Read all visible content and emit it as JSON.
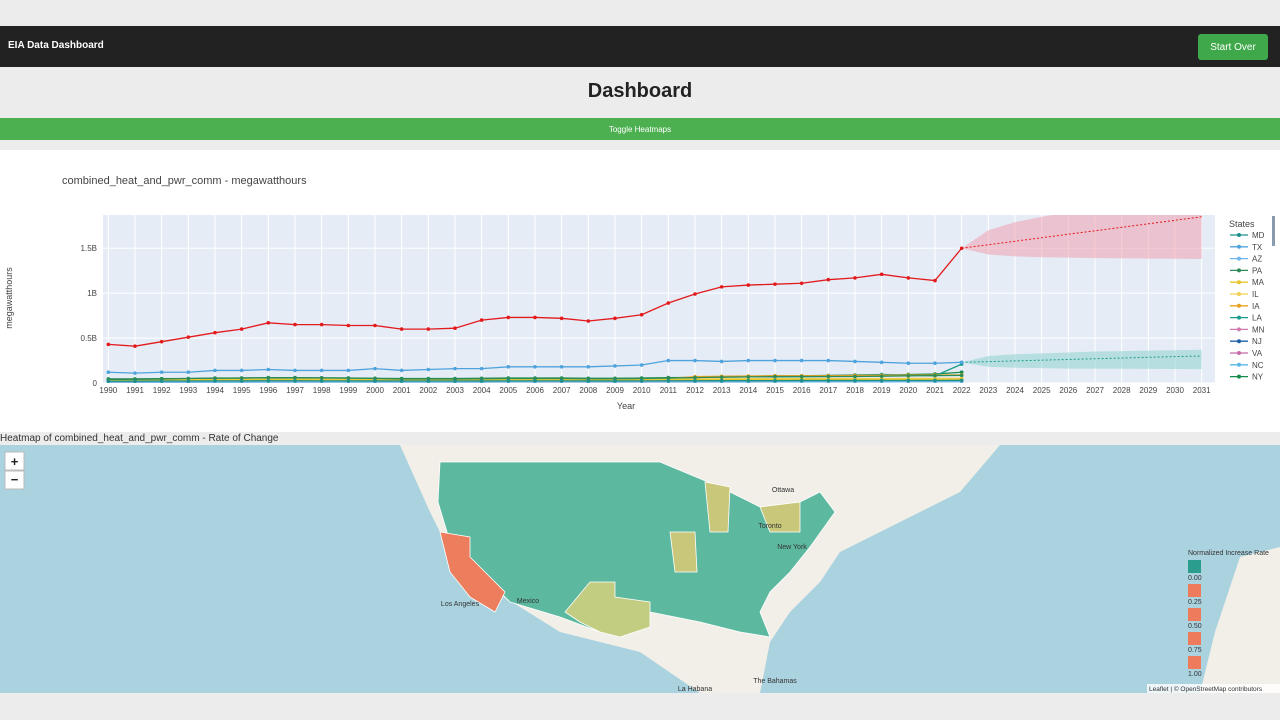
{
  "navbar": {
    "brand": "EIA Data Dashboard",
    "button": "Start Over"
  },
  "page_title": "Dashboard",
  "toggle_button": "Toggle Heatmaps",
  "chart_data": {
    "type": "line",
    "title": "combined_heat_and_pwr_comm - megawatthours",
    "x_label": "Year",
    "y_label": "megawatthours",
    "legend_title": "States",
    "grid": true,
    "xlim": [
      1989.8,
      2031.5
    ],
    "ylim": [
      0,
      1870000000
    ],
    "xticks": [
      1990,
      1991,
      1992,
      1993,
      1994,
      1995,
      1996,
      1997,
      1998,
      1999,
      2000,
      2001,
      2002,
      2003,
      2004,
      2005,
      2006,
      2007,
      2008,
      2009,
      2010,
      2011,
      2012,
      2013,
      2014,
      2015,
      2016,
      2017,
      2018,
      2019,
      2020,
      2021,
      2022,
      2023,
      2024,
      2025,
      2026,
      2027,
      2028,
      2029,
      2030,
      2031
    ],
    "yticks": [
      0,
      {
        "value": 500000000,
        "label": "0.5B"
      },
      {
        "value": 1000000000,
        "label": "1B"
      },
      {
        "value": 1500000000,
        "label": "1.5B"
      }
    ],
    "x": [
      1990,
      1991,
      1992,
      1993,
      1994,
      1995,
      1996,
      1997,
      1998,
      1999,
      2000,
      2001,
      2002,
      2003,
      2004,
      2005,
      2006,
      2007,
      2008,
      2009,
      2010,
      2011,
      2012,
      2013,
      2014,
      2015,
      2016,
      2017,
      2018,
      2019,
      2020,
      2021,
      2022
    ],
    "series": [
      {
        "color": "#e31a1c",
        "values": [
          430000000.0,
          410000000.0,
          460000000.0,
          510000000.0,
          560000000.0,
          600000000.0,
          670000000.0,
          650000000.0,
          650000000.0,
          640000000.0,
          640000000.0,
          600000000.0,
          600000000.0,
          610000000.0,
          700000000.0,
          730000000.0,
          730000000.0,
          720000000.0,
          690000000.0,
          720000000.0,
          760000000.0,
          890000000.0,
          990000000.0,
          1070000000.0,
          1090000000.0,
          1100000000.0,
          1110000000.0,
          1150000000.0,
          1170000000.0,
          1210000000.0,
          1170000000.0,
          1140000000.0,
          1500000000.0
        ]
      },
      {
        "name": "MD",
        "color": "#1f8f8a",
        "values": [
          20000000.0,
          20000000.0,
          22000000.0,
          22000000.0,
          24000000.0,
          24000000.0,
          25000000.0,
          25000000.0,
          24000000.0,
          24000000.0,
          23000000.0,
          22000000.0,
          22000000.0,
          22000000.0,
          23000000.0,
          24000000.0,
          24000000.0,
          24000000.0,
          23000000.0,
          23000000.0,
          24000000.0,
          25000000.0,
          25000000.0,
          26000000.0,
          26000000.0,
          26000000.0,
          27000000.0,
          27000000.0,
          27000000.0,
          28000000.0,
          28000000.0,
          28000000.0,
          29000000.0
        ]
      },
      {
        "name": "TX",
        "color": "#4fa3dd",
        "values": [
          120000000.0,
          110000000.0,
          120000000.0,
          120000000.0,
          140000000.0,
          140000000.0,
          150000000.0,
          140000000.0,
          140000000.0,
          140000000.0,
          160000000.0,
          140000000.0,
          150000000.0,
          160000000.0,
          160000000.0,
          180000000.0,
          180000000.0,
          180000000.0,
          180000000.0,
          190000000.0,
          200000000.0,
          250000000.0,
          250000000.0,
          240000000.0,
          250000000.0,
          250000000.0,
          250000000.0,
          250000000.0,
          240000000.0,
          230000000.0,
          220000000.0,
          220000000.0,
          230000000.0
        ]
      },
      {
        "name": "AZ",
        "color": "#6fb7e8",
        "values": [
          10000000.0,
          10000000.0,
          10000000.0,
          11000000.0,
          11000000.0,
          12000000.0,
          12000000.0,
          12000000.0,
          12000000.0,
          12000000.0,
          13000000.0,
          13000000.0,
          13000000.0,
          13000000.0,
          14000000.0,
          14000000.0,
          14000000.0,
          15000000.0,
          15000000.0,
          15000000.0,
          15000000.0,
          16000000.0,
          16000000.0,
          16000000.0,
          16000000.0,
          17000000.0,
          17000000.0,
          17000000.0,
          17000000.0,
          18000000.0,
          18000000.0,
          18000000.0,
          18000000.0
        ]
      },
      {
        "name": "PA",
        "color": "#2e8b57",
        "values": [
          40000000.0,
          40000000.0,
          45000000.0,
          50000000.0,
          55000000.0,
          55000000.0,
          60000000.0,
          60000000.0,
          58000000.0,
          55000000.0,
          50000000.0,
          45000000.0,
          45000000.0,
          45000000.0,
          48000000.0,
          50000000.0,
          50000000.0,
          50000000.0,
          48000000.0,
          48000000.0,
          50000000.0,
          55000000.0,
          60000000.0,
          65000000.0,
          68000000.0,
          70000000.0,
          70000000.0,
          72000000.0,
          72000000.0,
          75000000.0,
          80000000.0,
          82000000.0,
          85000000.0
        ]
      },
      {
        "name": "MA",
        "color": "#e5c72b",
        "values": [
          30000000.0,
          30000000.0,
          32000000.0,
          32000000.0,
          34000000.0,
          35000000.0,
          36000000.0,
          36000000.0,
          35000000.0,
          34000000.0,
          33000000.0,
          32000000.0,
          32000000.0,
          32000000.0,
          33000000.0,
          34000000.0,
          34000000.0,
          34000000.0,
          33000000.0,
          33000000.0,
          34000000.0,
          35000000.0,
          36000000.0,
          37000000.0,
          37000000.0,
          38000000.0,
          38000000.0,
          38000000.0,
          39000000.0,
          39000000.0,
          40000000.0,
          40000000.0,
          40000000.0
        ]
      },
      {
        "name": "IL",
        "color": "#f0d050",
        "values": [
          35000000.0,
          35000000.0,
          36000000.0,
          37000000.0,
          38000000.0,
          40000000.0,
          42000000.0,
          42000000.0,
          41000000.0,
          40000000.0,
          39000000.0,
          38000000.0,
          38000000.0,
          38000000.0,
          40000000.0,
          42000000.0,
          42000000.0,
          42000000.0,
          41000000.0,
          41000000.0,
          42000000.0,
          44000000.0,
          46000000.0,
          47000000.0,
          48000000.0,
          48000000.0,
          49000000.0,
          50000000.0,
          50000000.0,
          50000000.0,
          51000000.0,
          51000000.0,
          52000000.0
        ]
      },
      {
        "name": "IA",
        "color": "#e8a020",
        "values": [
          20000000.0,
          20000000.0,
          22000000.0,
          24000000.0,
          26000000.0,
          28000000.0,
          30000000.0,
          30000000.0,
          30000000.0,
          30000000.0,
          30000000.0,
          28000000.0,
          28000000.0,
          28000000.0,
          30000000.0,
          32000000.0,
          32000000.0,
          32000000.0,
          32000000.0,
          34000000.0,
          36000000.0,
          50000000.0,
          70000000.0,
          75000000.0,
          78000000.0,
          80000000.0,
          80000000.0,
          82000000.0,
          84000000.0,
          86000000.0,
          88000000.0,
          88000000.0,
          90000000.0
        ]
      },
      {
        "name": "LA",
        "color": "#1a9c8c",
        "values": [
          30000000.0,
          30000000.0,
          32000000.0,
          34000000.0,
          36000000.0,
          38000000.0,
          40000000.0,
          40000000.0,
          40000000.0,
          38000000.0,
          36000000.0,
          34000000.0,
          34000000.0,
          34000000.0,
          36000000.0,
          38000000.0,
          38000000.0,
          38000000.0,
          36000000.0,
          36000000.0,
          40000000.0,
          50000000.0,
          60000000.0,
          70000000.0,
          75000000.0,
          80000000.0,
          80000000.0,
          85000000.0,
          90000000.0,
          95000000.0,
          90000000.0,
          80000000.0,
          210000000.0
        ]
      },
      {
        "name": "MN",
        "color": "#d07ab0",
        "values": [
          15000000.0,
          15000000.0,
          16000000.0,
          16000000.0,
          17000000.0,
          18000000.0,
          18000000.0,
          18000000.0,
          18000000.0,
          18000000.0,
          18000000.0,
          17000000.0,
          17000000.0,
          17000000.0,
          18000000.0,
          18000000.0,
          18000000.0,
          18000000.0,
          18000000.0,
          18000000.0,
          19000000.0,
          20000000.0,
          20000000.0,
          21000000.0,
          21000000.0,
          22000000.0,
          22000000.0,
          22000000.0,
          23000000.0,
          23000000.0,
          23000000.0,
          23000000.0,
          24000000.0
        ]
      },
      {
        "name": "NJ",
        "color": "#1f5fa8",
        "values": [
          25000000.0,
          25000000.0,
          26000000.0,
          27000000.0,
          28000000.0,
          28000000.0,
          30000000.0,
          30000000.0,
          29000000.0,
          28000000.0,
          27000000.0,
          26000000.0,
          26000000.0,
          26000000.0,
          28000000.0,
          30000000.0,
          30000000.0,
          30000000.0,
          29000000.0,
          29000000.0,
          30000000.0,
          32000000.0,
          33000000.0,
          34000000.0,
          35000000.0,
          35000000.0,
          36000000.0,
          36000000.0,
          37000000.0,
          37000000.0,
          38000000.0,
          38000000.0,
          38000000.0
        ]
      },
      {
        "name": "VA",
        "color": "#c86aa8",
        "values": [
          12000000.0,
          12000000.0,
          13000000.0,
          13000000.0,
          14000000.0,
          14000000.0,
          15000000.0,
          15000000.0,
          15000000.0,
          15000000.0,
          15000000.0,
          14000000.0,
          14000000.0,
          14000000.0,
          15000000.0,
          15000000.0,
          15000000.0,
          15000000.0,
          15000000.0,
          15000000.0,
          16000000.0,
          16000000.0,
          17000000.0,
          17000000.0,
          17000000.0,
          18000000.0,
          18000000.0,
          18000000.0,
          18000000.0,
          19000000.0,
          19000000.0,
          19000000.0,
          19000000.0
        ]
      },
      {
        "name": "NC",
        "color": "#5cb8e6",
        "values": [
          8000000.0,
          8000000.0,
          8000000.0,
          9000000.0,
          9000000.0,
          9000000.0,
          10000000.0,
          10000000.0,
          10000000.0,
          10000000.0,
          10000000.0,
          10000000.0,
          10000000.0,
          10000000.0,
          10000000.0,
          11000000.0,
          11000000.0,
          11000000.0,
          11000000.0,
          11000000.0,
          11000000.0,
          12000000.0,
          12000000.0,
          12000000.0,
          12000000.0,
          13000000.0,
          13000000.0,
          13000000.0,
          13000000.0,
          13000000.0,
          14000000.0,
          14000000.0,
          14000000.0
        ]
      },
      {
        "name": "NY",
        "color": "#168a4a",
        "values": [
          45000000.0,
          45000000.0,
          48000000.0,
          50000000.0,
          52000000.0,
          55000000.0,
          58000000.0,
          58000000.0,
          56000000.0,
          55000000.0,
          52000000.0,
          50000000.0,
          50000000.0,
          50000000.0,
          52000000.0,
          55000000.0,
          55000000.0,
          55000000.0,
          52000000.0,
          52000000.0,
          55000000.0,
          60000000.0,
          62000000.0,
          65000000.0,
          68000000.0,
          70000000.0,
          72000000.0,
          72000000.0,
          75000000.0,
          80000000.0,
          95000000.0,
          100000000.0,
          120000000.0
        ]
      }
    ],
    "forecast": [
      {
        "color": "#e31a1c",
        "band_color": "#f0a0ae",
        "x": [
          2022,
          2023,
          2024,
          2025,
          2026,
          2027,
          2028,
          2029,
          2030,
          2031
        ],
        "values": [
          1500000000.0,
          1539000000.0,
          1578000000.0,
          1617000000.0,
          1656000000.0,
          1694000000.0,
          1733000000.0,
          1772000000.0,
          1811000000.0,
          1850000000.0
        ],
        "upper": [
          1500000000.0,
          1700000000.0,
          1790000000.0,
          1850000000.0,
          1900000000.0,
          1950000000.0,
          2000000000.0,
          2050000000.0,
          2100000000.0,
          2150000000.0
        ],
        "lower": [
          1500000000.0,
          1430000000.0,
          1410000000.0,
          1400000000.0,
          1395000000.0,
          1390000000.0,
          1388000000.0,
          1385000000.0,
          1383000000.0,
          1380000000.0
        ]
      },
      {
        "color": "#1a9c8c",
        "band_color": "#8fd3d0",
        "x": [
          2022,
          2023,
          2024,
          2025,
          2026,
          2027,
          2028,
          2029,
          2030,
          2031
        ],
        "values": [
          230000000.0,
          238000000.0,
          246000000.0,
          254000000.0,
          262000000.0,
          270000000.0,
          278000000.0,
          286000000.0,
          294000000.0,
          300000000.0
        ],
        "upper": [
          230000000.0,
          300000000.0,
          320000000.0,
          330000000.0,
          340000000.0,
          350000000.0,
          355000000.0,
          360000000.0,
          365000000.0,
          370000000.0
        ],
        "lower": [
          230000000.0,
          180000000.0,
          170000000.0,
          165000000.0,
          160000000.0,
          160000000.0,
          158000000.0,
          157000000.0,
          156000000.0,
          155000000.0
        ]
      }
    ]
  },
  "heatmap": {
    "title": "Heatmap of combined_heat_and_pwr_comm - Rate of Change",
    "legend_title": "Normalized Increase Rate",
    "legend_ticks": [
      {
        "value": 0,
        "label": "0.00"
      },
      {
        "value": 0.25,
        "label": "0.25"
      },
      {
        "value": 0.5,
        "label": "0.50"
      },
      {
        "value": 0.75,
        "label": "0.75"
      },
      {
        "value": 1,
        "label": "1.00"
      }
    ],
    "legend_colors": [
      "#2a9d8f",
      "#ee7b5c",
      "#ee7b5c",
      "#ee7b5c",
      "#ee7b5c"
    ],
    "place_labels": [
      "Ottawa",
      "Toronto",
      "New York",
      "Los Angeles",
      "Mexico",
      "La Habana",
      "The Bahamas"
    ],
    "zoom_in": "+",
    "zoom_out": "−",
    "attribution": "Leaflet | © OpenStreetMap contributors"
  }
}
